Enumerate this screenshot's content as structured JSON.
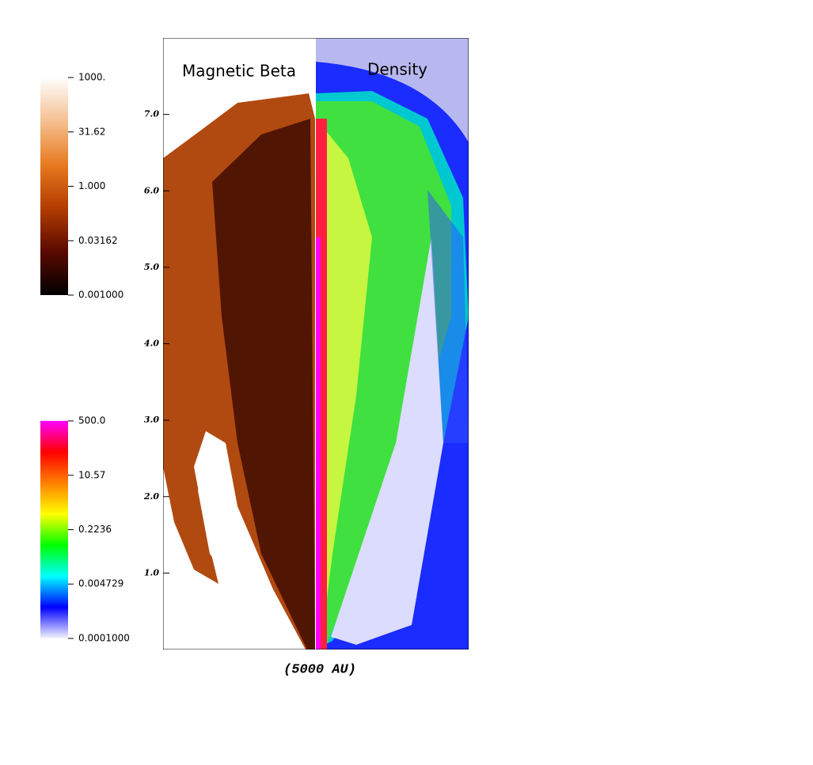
{
  "chart_data": {
    "type": "image",
    "xlabel": "(5000 AU)",
    "annotations": [
      "Magnetic Beta",
      "Density"
    ],
    "ylim": [
      0,
      8
    ],
    "yticks": [
      {
        "value": 1,
        "label": "1.0"
      },
      {
        "value": 2,
        "label": "2.0"
      },
      {
        "value": 3,
        "label": "3.0"
      },
      {
        "value": 4,
        "label": "4.0"
      },
      {
        "value": 5,
        "label": "5.0"
      },
      {
        "value": 6,
        "label": "6.0"
      },
      {
        "value": 7,
        "label": "7.0"
      }
    ],
    "colorbars": [
      {
        "log": true,
        "lim": [
          0.001,
          1000
        ],
        "colors": [
          "#000000",
          "#5a0a00",
          "#b33c00",
          "#e87a20",
          "#f5c090",
          "#ffffff"
        ],
        "ticks": [
          {
            "value": 1000,
            "label": "1000."
          },
          31.62,
          {
            "value": 1,
            "label": "1.000"
          },
          0.03162,
          {
            "value": 0.001,
            "label": "0.001000"
          }
        ]
      },
      {
        "log": true,
        "lim": [
          0.0001,
          500
        ],
        "colors": [
          "#f4f4ff",
          "#0000ff",
          "#00ffff",
          "#00ff00",
          "#ffff00",
          "#ff8000",
          "#ff0000",
          "#ff00ff"
        ],
        "ticks": [
          {
            "value": 500,
            "label": "500.0"
          },
          10.57,
          0.2236,
          0.004729,
          {
            "value": 0.0001,
            "label": "0.0001000"
          }
        ]
      }
    ]
  }
}
